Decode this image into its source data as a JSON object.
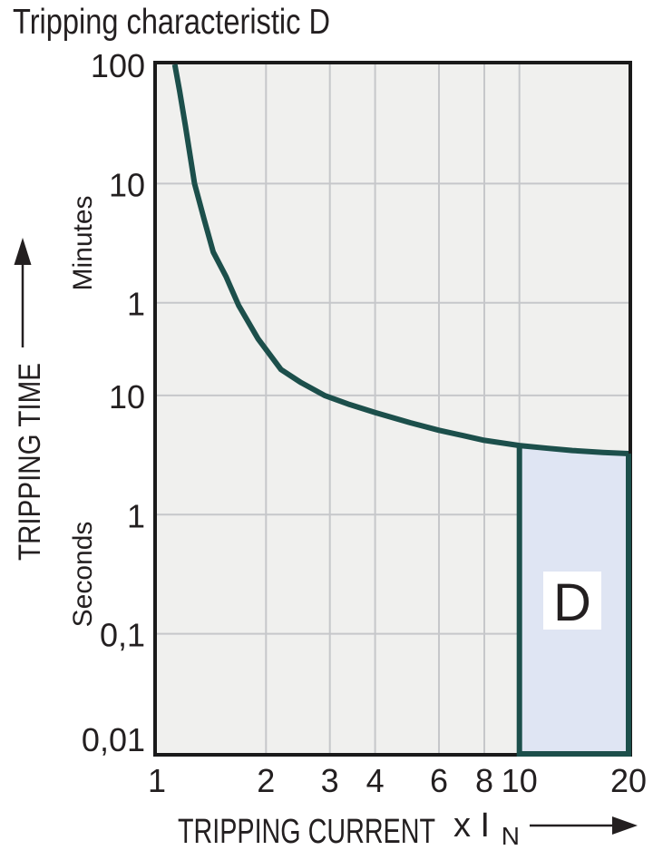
{
  "title": "Tripping characteristic D",
  "colors": {
    "curve_teal": "#1c4f4b",
    "region_fill": "#dfe5f3",
    "plot_bg": "#f0f0ee",
    "grid": "#c6c7ca",
    "border": "#1a1a1a",
    "text": "#231f20",
    "page_bg": "#ffffff",
    "region_label_bg": "#ffffff"
  },
  "chart_data": {
    "type": "line",
    "title": "Tripping characteristic D",
    "xlabel": "TRIPPING CURRENT",
    "x_unit": {
      "prefix": "x I",
      "subscript": "N"
    },
    "ylabel": "TRIPPING TIME",
    "x_scale": "log",
    "y_scale": "log",
    "grid": true,
    "x_range": [
      1,
      20
    ],
    "y_range_seconds": [
      0.01,
      6000
    ],
    "x_ticks": [
      {
        "v": 1,
        "label": "1"
      },
      {
        "v": 2,
        "label": "2"
      },
      {
        "v": 3,
        "label": "3"
      },
      {
        "v": 4,
        "label": "4"
      },
      {
        "v": 6,
        "label": "6"
      },
      {
        "v": 8,
        "label": "8"
      },
      {
        "v": 10,
        "label": "10"
      },
      {
        "v": 20,
        "label": "20"
      }
    ],
    "y_ticks": [
      {
        "t": 6000,
        "label": "100",
        "unit": "minutes"
      },
      {
        "t": 600,
        "label": "10",
        "unit": "minutes"
      },
      {
        "t": 60,
        "label": "1",
        "unit": "minutes"
      },
      {
        "t": 10,
        "label": "10",
        "unit": "seconds"
      },
      {
        "t": 1,
        "label": "1",
        "unit": "seconds"
      },
      {
        "t": 0.1,
        "label": "0,1",
        "unit": "seconds"
      },
      {
        "t": 0.01,
        "label": "0,01",
        "unit": "seconds"
      }
    ],
    "y_unit_bands": [
      {
        "label": "Minutes",
        "between_seconds": [
          600,
          60
        ]
      },
      {
        "label": "Seconds",
        "between_seconds": [
          1,
          0.1
        ]
      }
    ],
    "x_grid": [
      2,
      3,
      4,
      6,
      8,
      10
    ],
    "y_grid": [
      600,
      60,
      10,
      1,
      0.1
    ],
    "curve": {
      "name": "tripping-characteristic-d",
      "points_v_t_seconds": [
        [
          1.12,
          6000
        ],
        [
          1.155,
          3600
        ],
        [
          1.2,
          1800
        ],
        [
          1.27,
          600
        ],
        [
          1.35,
          300
        ],
        [
          1.43,
          160
        ],
        [
          1.55,
          100
        ],
        [
          1.68,
          57
        ],
        [
          1.9,
          30
        ],
        [
          2.2,
          16.5
        ],
        [
          2.5,
          12.8
        ],
        [
          2.9,
          10
        ],
        [
          3.4,
          8.4
        ],
        [
          4.0,
          7.2
        ],
        [
          5.0,
          5.9
        ],
        [
          6.0,
          5.1
        ],
        [
          7.0,
          4.6
        ],
        [
          8.0,
          4.2
        ],
        [
          10,
          3.8
        ],
        [
          12,
          3.6
        ],
        [
          14,
          3.45
        ],
        [
          17,
          3.33
        ],
        [
          20,
          3.25
        ]
      ]
    },
    "region": {
      "label": "D",
      "v_from": 10,
      "v_to": 20,
      "t_bottom_seconds": 0.01
    }
  }
}
